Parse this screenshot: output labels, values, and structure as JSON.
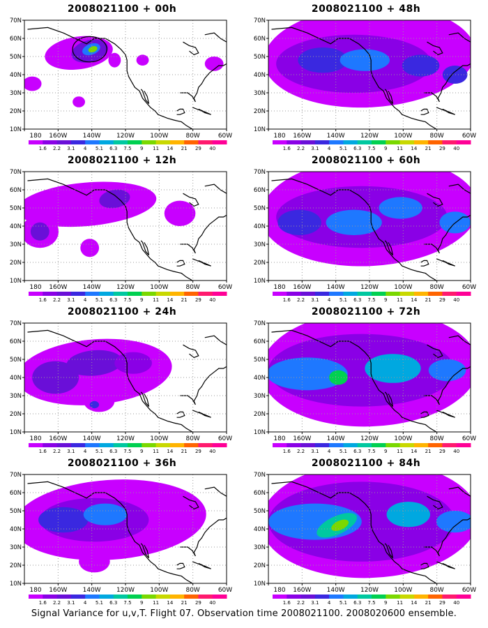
{
  "figure": {
    "caption": "Signal Variance for u,v,T. Flight 07. Observation time 2008021100. 2008020600 ensemble.",
    "lat_labels": [
      "70N",
      "60N",
      "50N",
      "40N",
      "30N",
      "20N",
      "10N"
    ],
    "lon_labels": [
      "180",
      "160W",
      "140W",
      "120W",
      "100W",
      "80W",
      "60W"
    ],
    "colorbar": {
      "labels": [
        "1.6",
        "2.2",
        "3.1",
        "4",
        "5.1",
        "6.3",
        "7.5",
        "9",
        "11",
        "14",
        "21",
        "29",
        "40"
      ],
      "colors": [
        "#c800ff",
        "#8a00e6",
        "#6a0fd8",
        "#3a28e0",
        "#1e78ff",
        "#00a8e0",
        "#00c8a0",
        "#00d050",
        "#7ad800",
        "#c8d800",
        "#ffb400",
        "#ff6400",
        "#ff1a6e",
        "#ff0096"
      ]
    },
    "panels": [
      {
        "title": "2008021100 + 00h",
        "lead": 0
      },
      {
        "title": "2008021100 + 48h",
        "lead": 48
      },
      {
        "title": "2008021100 + 12h",
        "lead": 12
      },
      {
        "title": "2008021100 + 60h",
        "lead": 60
      },
      {
        "title": "2008021100 + 24h",
        "lead": 24
      },
      {
        "title": "2008021100 + 72h",
        "lead": 72
      },
      {
        "title": "2008021100 + 36h",
        "lead": 36
      },
      {
        "title": "2008021100 + 84h",
        "lead": 84
      }
    ]
  }
}
